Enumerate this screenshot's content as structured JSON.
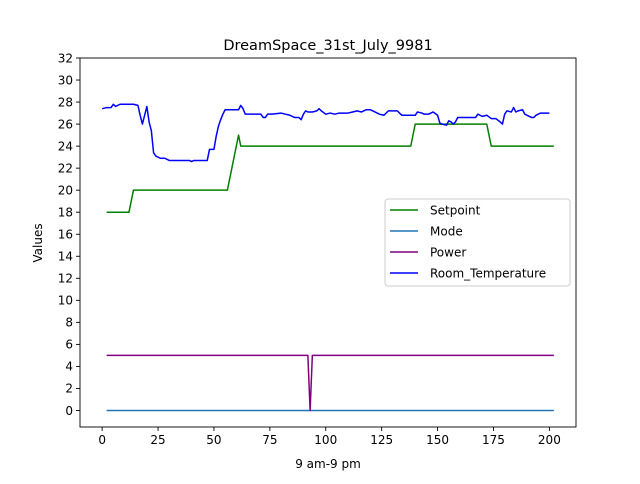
{
  "chart_data": {
    "type": "line",
    "title": "DreamSpace_31st_July_9981",
    "xlabel": "9 am-9 pm",
    "ylabel": "Values",
    "xlim": [
      -9.9,
      211.9
    ],
    "ylim": [
      -1.5,
      32
    ],
    "xticks": [
      0,
      25,
      50,
      75,
      100,
      125,
      150,
      175,
      200
    ],
    "yticks": [
      0,
      2,
      4,
      6,
      8,
      10,
      12,
      14,
      16,
      18,
      20,
      22,
      24,
      26,
      28,
      30,
      32
    ],
    "grid": false,
    "legend_position": "center-right",
    "series": [
      {
        "name": "Setpoint",
        "color": "#008000",
        "points": [
          [
            2,
            18
          ],
          [
            12,
            18
          ],
          [
            14,
            20
          ],
          [
            56,
            20
          ],
          [
            61,
            25
          ],
          [
            62,
            24
          ],
          [
            138,
            24
          ],
          [
            140,
            26
          ],
          [
            172,
            26
          ],
          [
            174,
            24
          ],
          [
            202,
            24
          ]
        ]
      },
      {
        "name": "Mode",
        "color": "#1f77b4",
        "points": [
          [
            2,
            0
          ],
          [
            202,
            0
          ]
        ]
      },
      {
        "name": "Power",
        "color": "#800080",
        "points": [
          [
            2,
            5
          ],
          [
            92,
            5
          ],
          [
            93,
            0
          ],
          [
            94,
            5
          ],
          [
            202,
            5
          ]
        ]
      },
      {
        "name": "Room_Temperature",
        "color": "#0000ff",
        "points": [
          [
            0,
            27.4
          ],
          [
            2,
            27.5
          ],
          [
            4,
            27.5
          ],
          [
            5,
            27.8
          ],
          [
            6,
            27.6
          ],
          [
            8,
            27.8
          ],
          [
            10,
            27.8
          ],
          [
            12,
            27.8
          ],
          [
            14,
            27.8
          ],
          [
            16,
            27.7
          ],
          [
            17,
            26.8
          ],
          [
            18,
            26
          ],
          [
            19,
            26.8
          ],
          [
            20,
            27.6
          ],
          [
            21,
            26.2
          ],
          [
            22,
            25.4
          ],
          [
            23,
            23.4
          ],
          [
            24,
            23.1
          ],
          [
            26,
            22.9
          ],
          [
            28,
            22.9
          ],
          [
            30,
            22.7
          ],
          [
            35,
            22.7
          ],
          [
            39,
            22.7
          ],
          [
            40,
            22.6
          ],
          [
            41,
            22.7
          ],
          [
            47,
            22.7
          ],
          [
            48,
            23.7
          ],
          [
            50,
            23.7
          ],
          [
            51,
            24.9
          ],
          [
            52,
            25.8
          ],
          [
            53,
            26.4
          ],
          [
            54,
            26.9
          ],
          [
            55,
            27.3
          ],
          [
            60,
            27.3
          ],
          [
            61,
            27.3
          ],
          [
            62,
            27.7
          ],
          [
            63,
            27.4
          ],
          [
            64,
            26.9
          ],
          [
            66,
            26.9
          ],
          [
            71,
            26.9
          ],
          [
            72,
            26.6
          ],
          [
            73,
            26.6
          ],
          [
            74,
            26.9
          ],
          [
            76,
            26.9
          ],
          [
            80,
            27
          ],
          [
            82,
            26.9
          ],
          [
            84,
            26.8
          ],
          [
            86,
            26.6
          ],
          [
            88,
            26.6
          ],
          [
            89,
            26.4
          ],
          [
            90,
            26.9
          ],
          [
            91,
            27.2
          ],
          [
            92,
            27.1
          ],
          [
            94,
            27.1
          ],
          [
            96,
            27.2
          ],
          [
            97,
            27.4
          ],
          [
            98,
            27.2
          ],
          [
            100,
            26.9
          ],
          [
            102,
            27
          ],
          [
            104,
            26.9
          ],
          [
            106,
            27
          ],
          [
            108,
            27
          ],
          [
            110,
            27
          ],
          [
            112,
            27.1
          ],
          [
            114,
            27.2
          ],
          [
            116,
            27.1
          ],
          [
            118,
            27.3
          ],
          [
            120,
            27.3
          ],
          [
            122,
            27.1
          ],
          [
            124,
            26.9
          ],
          [
            126,
            26.8
          ],
          [
            128,
            27.2
          ],
          [
            130,
            27.2
          ],
          [
            132,
            27.2
          ],
          [
            134,
            26.8
          ],
          [
            136,
            26.8
          ],
          [
            140,
            26.8
          ],
          [
            141,
            27.1
          ],
          [
            143,
            27
          ],
          [
            144,
            26.9
          ],
          [
            146,
            26.9
          ],
          [
            148,
            27.1
          ],
          [
            150,
            26.8
          ],
          [
            151,
            26.1
          ],
          [
            152,
            26
          ],
          [
            154,
            25.9
          ],
          [
            155,
            26.3
          ],
          [
            156,
            26.2
          ],
          [
            157,
            26
          ],
          [
            158,
            26.2
          ],
          [
            159,
            26.6
          ],
          [
            165,
            26.6
          ],
          [
            167,
            26.6
          ],
          [
            168,
            26.9
          ],
          [
            170,
            26.7
          ],
          [
            172,
            26.8
          ],
          [
            174,
            26.5
          ],
          [
            176,
            26.5
          ],
          [
            178,
            26.2
          ],
          [
            179,
            26
          ],
          [
            180,
            26.9
          ],
          [
            181,
            27.2
          ],
          [
            183,
            27.1
          ],
          [
            184,
            27.5
          ],
          [
            185,
            27.1
          ],
          [
            186,
            27.2
          ],
          [
            188,
            27.3
          ],
          [
            189,
            26.9
          ],
          [
            190,
            26.8
          ],
          [
            192,
            26.6
          ],
          [
            193,
            26.6
          ],
          [
            194,
            26.8
          ],
          [
            195,
            26.9
          ],
          [
            196,
            27
          ],
          [
            198,
            27
          ],
          [
            200,
            27
          ]
        ]
      }
    ]
  }
}
